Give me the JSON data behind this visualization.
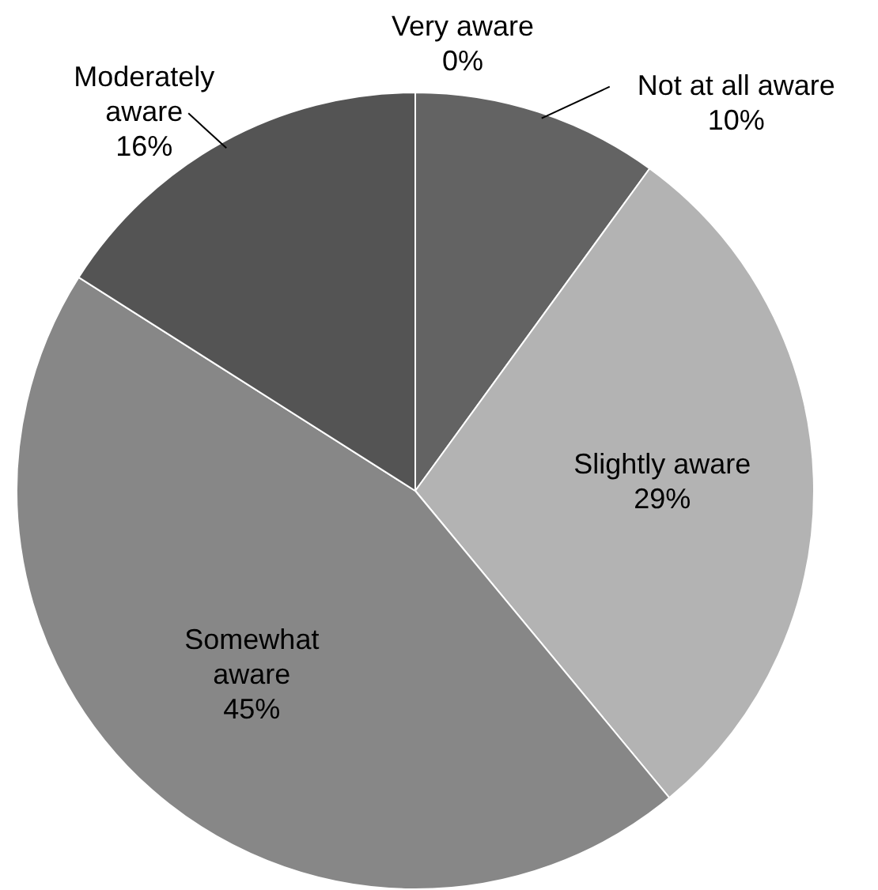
{
  "chart_data": {
    "type": "pie",
    "categories": [
      "Not at all aware",
      "Slightly aware",
      "Somewhat aware",
      "Moderately aware",
      "Very aware"
    ],
    "values": [
      10,
      29,
      45,
      16,
      0
    ],
    "value_labels": [
      "10%",
      "29%",
      "45%",
      "16%",
      "0%"
    ],
    "colors": [
      "#636363",
      "#b3b3b3",
      "#878787",
      "#545454",
      "#3f3f3f"
    ],
    "legend": false
  }
}
